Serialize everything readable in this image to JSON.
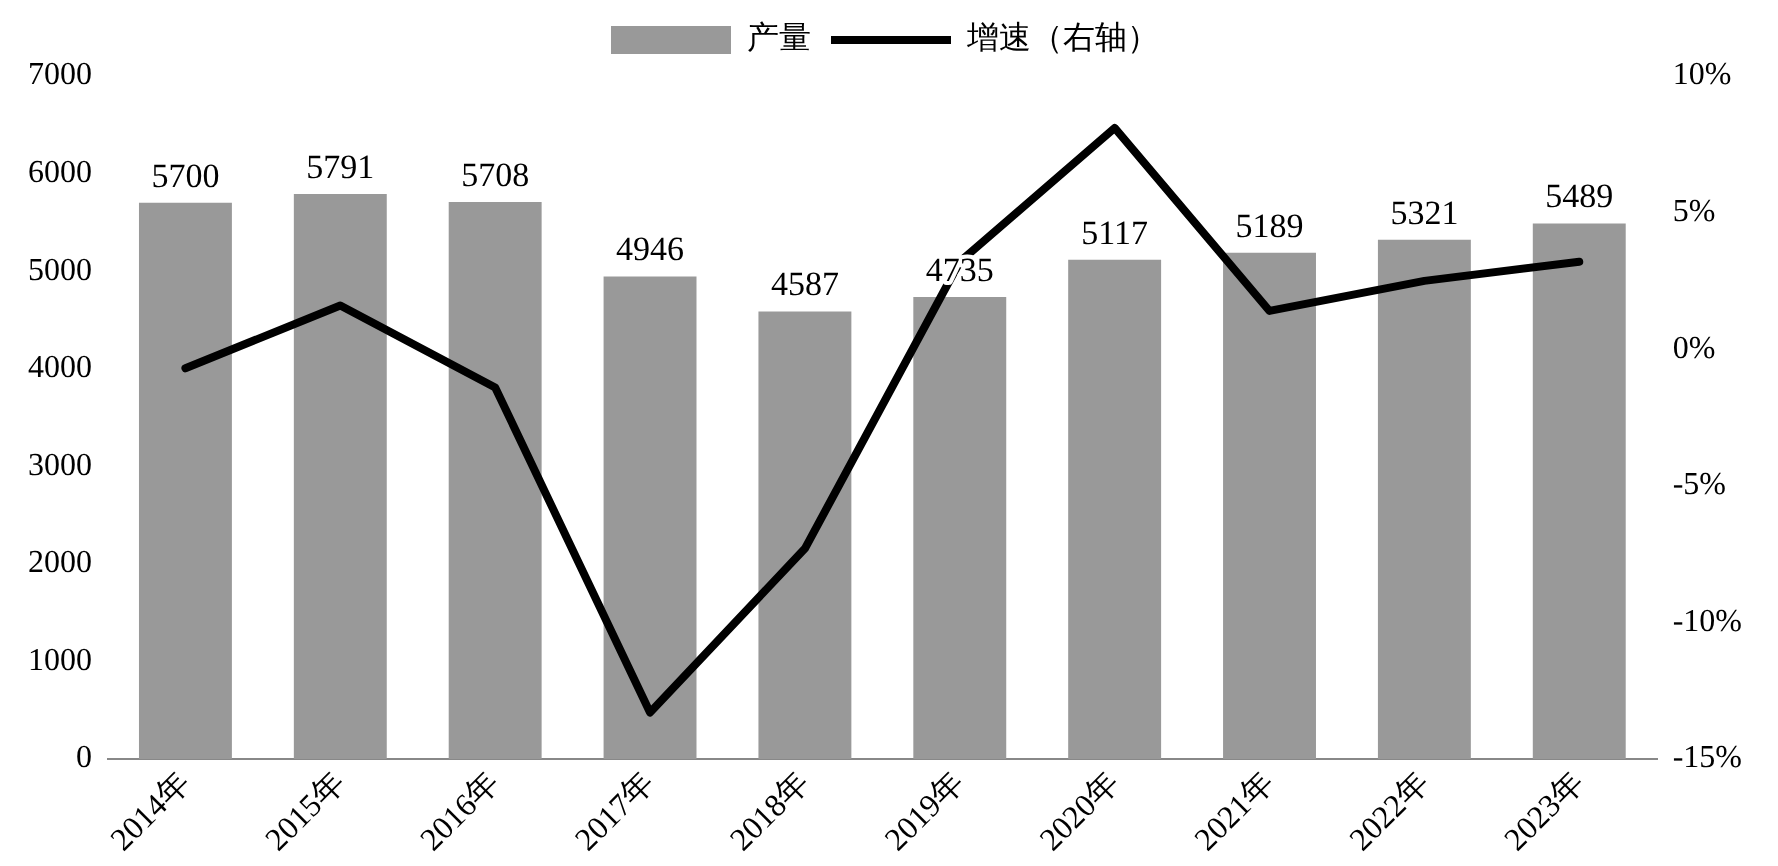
{
  "chart_data": {
    "type": "bar",
    "categories": [
      "2014年",
      "2015年",
      "2016年",
      "2017年",
      "2018年",
      "2019年",
      "2020年",
      "2021年",
      "2022年",
      "2023年"
    ],
    "series": [
      {
        "name": "产量",
        "color": "#999999",
        "values": [
          5700,
          5791,
          5708,
          4946,
          4587,
          4735,
          5117,
          5189,
          5321,
          5489
        ],
        "value_labels": [
          "5700",
          "5791",
          "5708",
          "4946",
          "4587",
          "4735",
          "5117",
          "5189",
          "5321",
          "5489"
        ]
      },
      {
        "name": "增速（右轴）",
        "type": "line",
        "axis": "y2",
        "color": "#000000",
        "values": [
          -0.7,
          1.6,
          -1.4,
          -13.3,
          -7.3,
          3.2,
          8.1,
          1.4,
          2.5,
          3.2
        ]
      }
    ],
    "ylim": [
      0,
      7000
    ],
    "yticks": [
      0,
      1000,
      2000,
      3000,
      4000,
      5000,
      6000,
      7000
    ],
    "y2lim": [
      -15,
      10
    ],
    "y2ticks": [
      {
        "value": -15,
        "label": "-15%"
      },
      {
        "value": -10,
        "label": "-10%"
      },
      {
        "value": -5,
        "label": "-5%"
      },
      {
        "value": 0,
        "label": "0%"
      },
      {
        "value": 5,
        "label": "5%"
      },
      {
        "value": 10,
        "label": "10%"
      }
    ],
    "legend": "top",
    "grid": false,
    "marker": "none",
    "line_style": "solid"
  }
}
